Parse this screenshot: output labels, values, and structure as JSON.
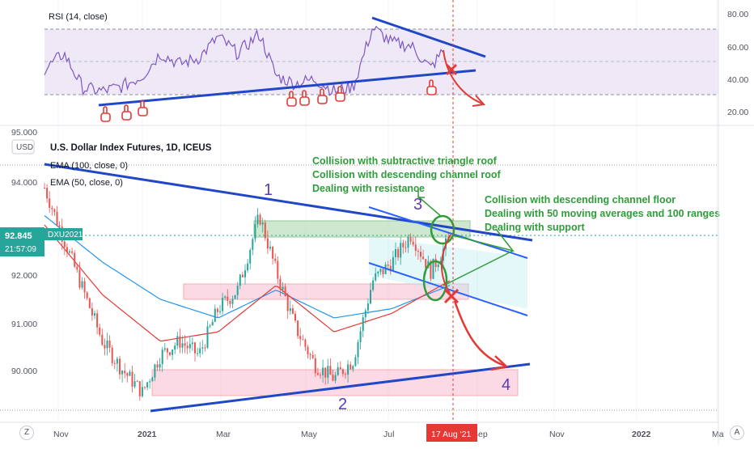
{
  "colors": {
    "background": "#ffffff",
    "grid": "#f0f3fa",
    "up_candle": "#26a69a",
    "down_candle": "#ef5350",
    "ema100": "#2196f3",
    "ema50": "#e53935",
    "rsi_line": "#7e57c2",
    "rsi_band_fill": "#ede7f6",
    "trendline": "#2047c8",
    "channel_line": "#2962ff",
    "annotation_green": "#2e9d3a",
    "annotation_red": "#e53935",
    "label_purple": "#5b3ab4",
    "price_badge": "#26a69a"
  },
  "rsi_panel": {
    "title": "RSI (14, close)",
    "axis_labels": [
      "80.00",
      "60.00",
      "40.00",
      "20.00"
    ],
    "band_levels": [
      70,
      50,
      30
    ]
  },
  "price_panel": {
    "symbol_title": "U.S. Dollar Index Futures, 1D, ICEUS",
    "currency_badge": "USD",
    "ema100_label": "EMA (100, close, 0)",
    "ema50_label": "EMA (50, close, 0)",
    "axis_labels": [
      "95.000",
      "94.000",
      "92.000",
      "91.000",
      "90.000"
    ],
    "price_badge_value": "92.845",
    "price_badge_countdown": "21:57:09",
    "symbol_badge": "DXU2021"
  },
  "time_axis": {
    "labels": [
      "Nov",
      "2021",
      "Mar",
      "May",
      "Jul",
      "Sep",
      "Nov",
      "2022",
      "Ma"
    ],
    "highlight_label": "17 Aug '21"
  },
  "annotations": {
    "wave_numbers": [
      "1",
      "2",
      "3",
      "4"
    ],
    "left_note_lines": [
      "Collision with subtractive triangle roof",
      "Collision with descending channel roof",
      "Dealing with resistance"
    ],
    "right_note_lines": [
      "Collision with descending channel floor",
      "Dealing with 50 moving averages and 100 ranges",
      "Dealing with support"
    ]
  },
  "bottom_buttons": {
    "left": "Z",
    "right": "A"
  },
  "chart_data": {
    "type": "line",
    "title": "U.S. Dollar Index Futures, 1D, ICEUS",
    "y_range": [
      89.1,
      95.1
    ],
    "x_labels": [
      "Nov",
      "2021",
      "Mar",
      "May",
      "Jul",
      "Sep",
      "Nov",
      "2022",
      "Ma"
    ],
    "series": [
      {
        "name": "U.S. Dollar Index Futures",
        "dates": [
          "2020-10-26",
          "2020-11-09",
          "2020-11-23",
          "2020-12-07",
          "2020-12-21",
          "2021-01-05",
          "2021-01-18",
          "2021-02-01",
          "2021-02-15",
          "2021-03-01",
          "2021-03-15",
          "2021-03-31",
          "2021-04-12",
          "2021-04-26",
          "2021-05-10",
          "2021-05-24",
          "2021-06-07",
          "2021-06-21",
          "2021-07-05",
          "2021-07-19",
          "2021-08-02",
          "2021-08-16"
        ],
        "values": [
          93.9,
          92.8,
          91.7,
          90.6,
          90.0,
          89.5,
          90.3,
          90.6,
          90.3,
          91.3,
          91.7,
          93.3,
          92.1,
          90.9,
          90.1,
          89.8,
          90.2,
          91.9,
          92.3,
          92.9,
          92.1,
          92.8
        ]
      },
      {
        "name": "EMA (100, close, 0)",
        "dates": [
          "2020-10-26",
          "2020-12-07",
          "2021-01-18",
          "2021-03-01",
          "2021-04-12",
          "2021-05-24",
          "2021-07-05",
          "2021-08-16"
        ],
        "values": [
          93.3,
          92.3,
          91.5,
          91.1,
          91.7,
          91.1,
          91.3,
          91.8
        ]
      },
      {
        "name": "EMA (50, close, 0)",
        "dates": [
          "2020-10-26",
          "2020-12-07",
          "2021-01-18",
          "2021-03-01",
          "2021-04-12",
          "2021-05-24",
          "2021-07-05",
          "2021-08-16"
        ],
        "values": [
          93.1,
          91.6,
          90.6,
          90.8,
          91.8,
          90.8,
          91.2,
          91.9
        ]
      }
    ],
    "rsi": {
      "name": "RSI (14, close)",
      "y_range": [
        10,
        85
      ],
      "dates": [
        "2020-10-26",
        "2020-11-09",
        "2020-11-23",
        "2020-12-07",
        "2020-12-21",
        "2021-01-05",
        "2021-01-18",
        "2021-02-01",
        "2021-02-15",
        "2021-03-01",
        "2021-03-15",
        "2021-03-31",
        "2021-04-12",
        "2021-04-26",
        "2021-05-10",
        "2021-05-24",
        "2021-06-07",
        "2021-06-21",
        "2021-07-05",
        "2021-07-19",
        "2021-08-02",
        "2021-08-16"
      ],
      "values": [
        44,
        55,
        32,
        30,
        33,
        40,
        55,
        48,
        52,
        66,
        55,
        68,
        40,
        35,
        38,
        30,
        33,
        72,
        62,
        60,
        45,
        63
      ]
    },
    "ylabel": "",
    "xlabel": ""
  }
}
